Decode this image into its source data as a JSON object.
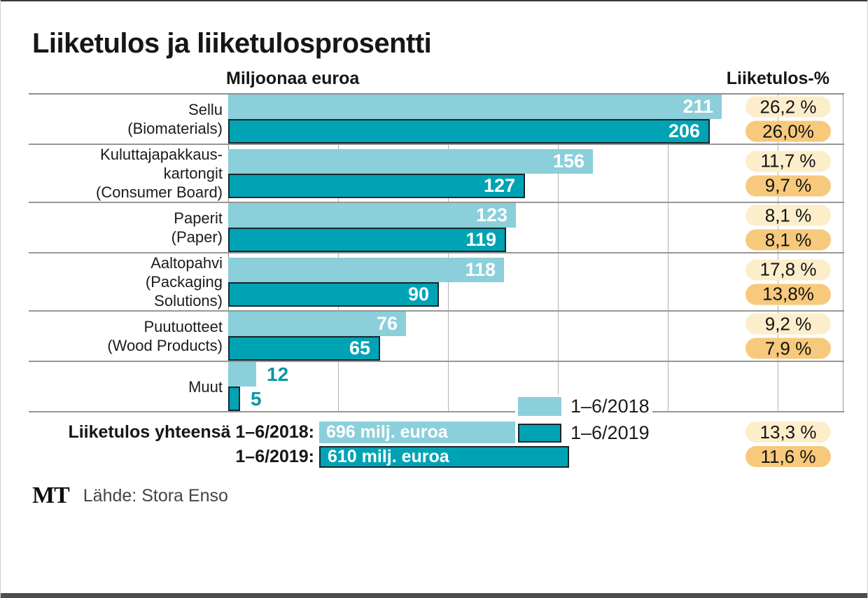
{
  "title": "Liiketulos ja liiketulosprosentti",
  "headers": {
    "left": "Miljoonaa euroa",
    "right": "Liiketulos-%"
  },
  "legend": [
    "1–6/2018",
    "1–6/2019"
  ],
  "chart_data": {
    "type": "bar",
    "orientation": "horizontal",
    "value_unit": "miljoonaa euroa",
    "series_names": [
      "1–6/2018",
      "1–6/2019"
    ],
    "grid": "vertical",
    "xlim": [
      0,
      260
    ],
    "categories": [
      {
        "label_lines": [
          "Sellu",
          "(Biomaterials)"
        ],
        "values": [
          211,
          206
        ],
        "pct": [
          "26,2 %",
          "26,0%"
        ]
      },
      {
        "label_lines": [
          "Kuluttajapakkaus-",
          "kartongit",
          "(Consumer Board)"
        ],
        "values": [
          156,
          127
        ],
        "pct": [
          "11,7 %",
          "9,7 %"
        ]
      },
      {
        "label_lines": [
          "Paperit",
          "(Paper)"
        ],
        "values": [
          123,
          119
        ],
        "pct": [
          "8,1 %",
          "8,1 %"
        ]
      },
      {
        "label_lines": [
          "Aaltopahvi",
          "(Packaging",
          "Solutions)"
        ],
        "values": [
          118,
          90
        ],
        "pct": [
          "17,8 %",
          "13,8%"
        ]
      },
      {
        "label_lines": [
          "Puutuotteet",
          "(Wood Products)"
        ],
        "values": [
          76,
          65
        ],
        "pct": [
          "9,2 %",
          "7,9 %"
        ]
      },
      {
        "label_lines": [
          "Muut"
        ],
        "values": [
          12,
          5
        ],
        "pct": []
      }
    ],
    "totals": [
      {
        "label": "Liiketulos yhteensä 1–6/2018:",
        "bar_text": "696 milj. euroa",
        "value": 696,
        "pct": "13,3 %"
      },
      {
        "label": "1–6/2019:",
        "bar_text": "610 milj. euroa",
        "value": 610,
        "pct": "11,6 %"
      }
    ],
    "colors": {
      "series_2018": "#8bcfda",
      "series_2019": "#00a3b4",
      "badge_2018": "#fdeecb",
      "badge_2019": "#f7c97c"
    }
  },
  "footer": {
    "logo": "MT",
    "source": "Lähde: Stora Enso"
  }
}
